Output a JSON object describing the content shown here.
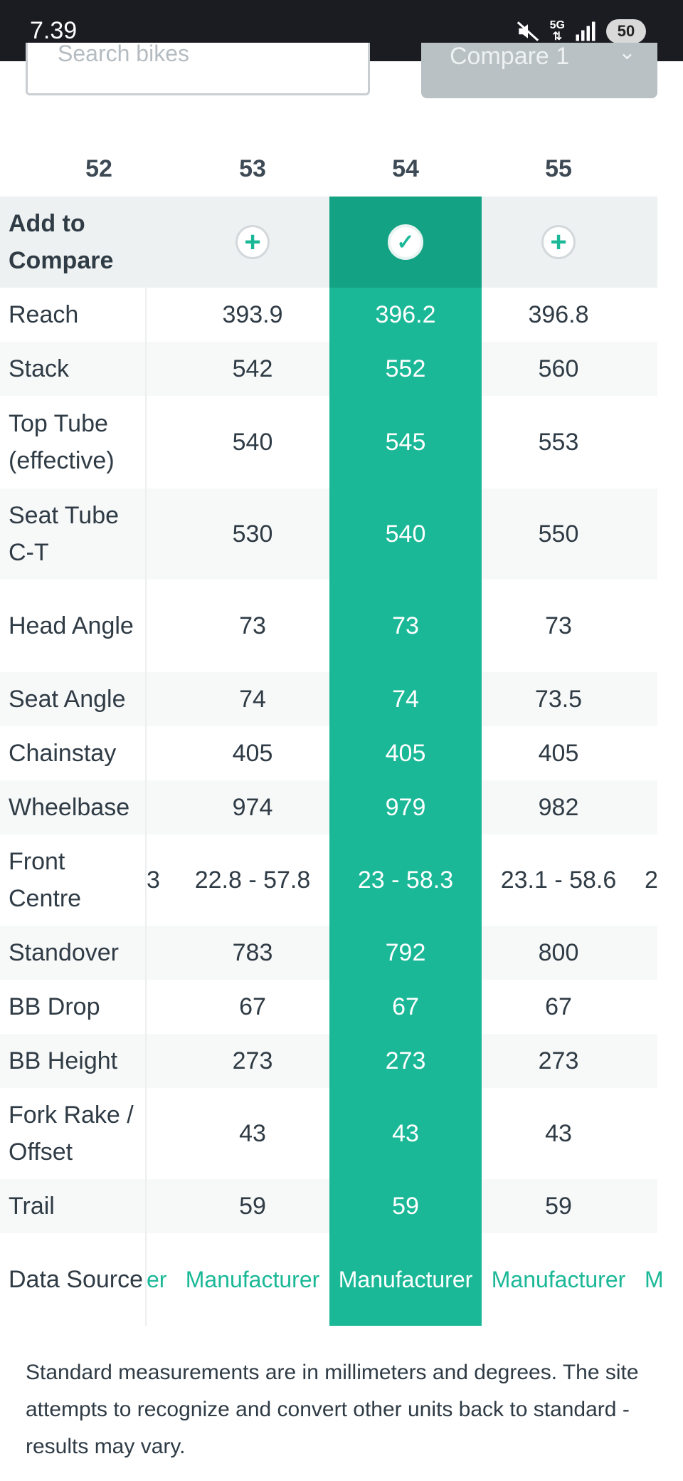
{
  "status_bar": {
    "time": "7.39",
    "battery": "50",
    "network": "5G"
  },
  "search": {
    "placeholder": "Search bikes"
  },
  "compare_button": {
    "label": "Compare 1",
    "chevron": "chevron-down-icon"
  },
  "sizes": [
    "52",
    "53",
    "54",
    "55"
  ],
  "selected_size": "54",
  "compare_row_label": "Add to Compare",
  "rows": [
    {
      "label": "Reach",
      "left": "",
      "values": [
        "393.9",
        "396.2",
        "396.8"
      ],
      "right": ""
    },
    {
      "label": "Stack",
      "left": "",
      "values": [
        "542",
        "552",
        "560"
      ],
      "right": ""
    },
    {
      "label": "Top Tube (effective)",
      "left": "",
      "values": [
        "540",
        "545",
        "553"
      ],
      "right": ""
    },
    {
      "label": "Seat Tube C-T",
      "left": "",
      "values": [
        "530",
        "540",
        "550"
      ],
      "right": ""
    },
    {
      "label": "Head Angle",
      "left": "",
      "values": [
        "73",
        "73",
        "73"
      ],
      "right": ""
    },
    {
      "label": "Seat Angle",
      "left": "",
      "values": [
        "74",
        "74",
        "73.5"
      ],
      "right": ""
    },
    {
      "label": "Chainstay",
      "left": "",
      "values": [
        "405",
        "405",
        "405"
      ],
      "right": ""
    },
    {
      "label": "Wheelbase",
      "left": "",
      "values": [
        "974",
        "979",
        "982"
      ],
      "right": ""
    },
    {
      "label": "Front Centre",
      "left": "3",
      "values": [
        "22.8 - 57.8",
        "23 - 58.3",
        "23.1 - 58.6"
      ],
      "right": "2"
    },
    {
      "label": "Standover",
      "left": "",
      "values": [
        "783",
        "792",
        "800"
      ],
      "right": ""
    },
    {
      "label": "BB Drop",
      "left": "",
      "values": [
        "67",
        "67",
        "67"
      ],
      "right": ""
    },
    {
      "label": "BB Height",
      "left": "",
      "values": [
        "273",
        "273",
        "273"
      ],
      "right": ""
    },
    {
      "label": "Fork Rake / Offset",
      "left": "",
      "values": [
        "43",
        "43",
        "43"
      ],
      "right": ""
    },
    {
      "label": "Trail",
      "left": "",
      "values": [
        "59",
        "59",
        "59"
      ],
      "right": ""
    },
    {
      "label": "Data Source",
      "left": "er",
      "values": [
        "Manufacturer",
        "Manufacturer",
        "Manufacturer"
      ],
      "right": "M",
      "link": true
    }
  ],
  "footnote": "Standard measurements are in millimeters and degrees. The site attempts to recognize and convert other units back to standard - results may vary.",
  "colors": {
    "accent": "#1ab897",
    "status_bar": "#1b1b22",
    "compare_disabled": "#b9c1c4"
  }
}
